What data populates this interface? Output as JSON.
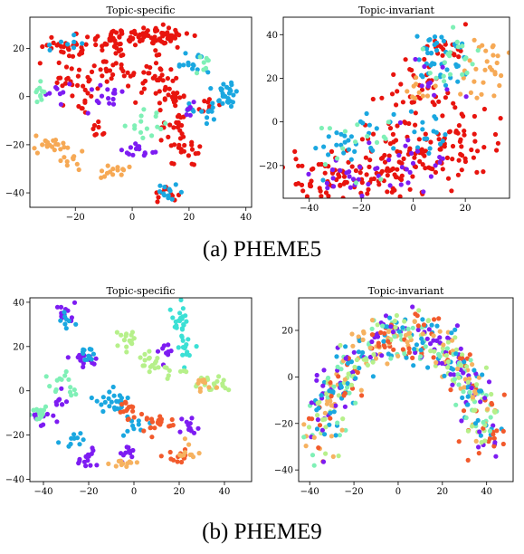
{
  "captions": [
    "(a) PHEME5",
    "(b) PHEME9"
  ],
  "colors": {
    "red": "#e8140e",
    "cyan": "#1aa7e0",
    "violet": "#7d1cf2",
    "mint": "#7ff0b6",
    "orange": "#f6a955",
    "teal": "#3be0d5",
    "lightgreen": "#b6f08a",
    "redorange": "#f25a2c",
    "lightorange": "#f6b260"
  },
  "chart_data": [
    {
      "type": "scatter",
      "title": "Topic-specific",
      "xlim": [
        -36,
        42
      ],
      "ylim": [
        -46,
        33
      ],
      "xticks": [
        -20,
        0,
        20,
        40
      ],
      "yticks": [
        -40,
        -20,
        0,
        20
      ],
      "clusters": [
        {
          "color": "red",
          "cx": 8,
          "cy": 25,
          "sx": 6,
          "sy": 2,
          "n": 60
        },
        {
          "color": "red",
          "cx": -6,
          "cy": 24,
          "sx": 5,
          "sy": 2.5,
          "n": 40
        },
        {
          "color": "red",
          "cx": -22,
          "cy": 20,
          "sx": 4,
          "sy": 3,
          "n": 30
        },
        {
          "color": "red",
          "cx": -20,
          "cy": 6,
          "sx": 4,
          "sy": 4,
          "n": 30
        },
        {
          "color": "red",
          "cx": -8,
          "cy": 10,
          "sx": 4,
          "sy": 3,
          "n": 25
        },
        {
          "color": "red",
          "cx": 7,
          "cy": 9,
          "sx": 3,
          "sy": 4,
          "n": 25
        },
        {
          "color": "red",
          "cx": 14,
          "cy": 0,
          "sx": 4,
          "sy": 3,
          "n": 25
        },
        {
          "color": "red",
          "cx": 14,
          "cy": -12,
          "sx": 3,
          "sy": 3,
          "n": 20
        },
        {
          "color": "red",
          "cx": 19,
          "cy": -24,
          "sx": 3,
          "sy": 3,
          "n": 20
        },
        {
          "color": "red",
          "cx": 12,
          "cy": -40,
          "sx": 2,
          "sy": 2,
          "n": 12
        },
        {
          "color": "red",
          "cx": 27,
          "cy": -4,
          "sx": 2,
          "sy": 2,
          "n": 10
        },
        {
          "color": "red",
          "cx": -12,
          "cy": -14,
          "sx": 2,
          "sy": 2,
          "n": 8
        },
        {
          "color": "cyan",
          "cx": 34,
          "cy": 2,
          "sx": 4,
          "sy": 3,
          "n": 25
        },
        {
          "color": "cyan",
          "cx": 21,
          "cy": 14,
          "sx": 3,
          "sy": 2,
          "n": 15
        },
        {
          "color": "cyan",
          "cx": 28,
          "cy": -6,
          "sx": 2,
          "sy": 2,
          "n": 10
        },
        {
          "color": "cyan",
          "cx": 13,
          "cy": -40,
          "sx": 2,
          "sy": 2,
          "n": 12
        },
        {
          "color": "cyan",
          "cx": -22,
          "cy": 22,
          "sx": 3,
          "sy": 2,
          "n": 8
        },
        {
          "color": "cyan",
          "cx": 20,
          "cy": -5,
          "sx": 2,
          "sy": 2,
          "n": 6
        },
        {
          "color": "violet",
          "cx": -10,
          "cy": 0,
          "sx": 3,
          "sy": 3,
          "n": 15
        },
        {
          "color": "violet",
          "cx": 3,
          "cy": -22,
          "sx": 3,
          "sy": 2,
          "n": 15
        },
        {
          "color": "violet",
          "cx": -26,
          "cy": 2,
          "sx": 2,
          "sy": 2,
          "n": 8
        },
        {
          "color": "violet",
          "cx": 20,
          "cy": -5,
          "sx": 2,
          "sy": 2,
          "n": 6
        },
        {
          "color": "mint",
          "cx": -32,
          "cy": 2,
          "sx": 2,
          "sy": 2,
          "n": 10
        },
        {
          "color": "mint",
          "cx": 4,
          "cy": -12,
          "sx": 3,
          "sy": 3,
          "n": 15
        },
        {
          "color": "mint",
          "cx": 26,
          "cy": 13,
          "sx": 2,
          "sy": 2,
          "n": 8
        },
        {
          "color": "orange",
          "cx": -28,
          "cy": -20,
          "sx": 3,
          "sy": 2,
          "n": 20
        },
        {
          "color": "orange",
          "cx": -22,
          "cy": -26,
          "sx": 2,
          "sy": 2,
          "n": 10
        },
        {
          "color": "orange",
          "cx": -8,
          "cy": -31,
          "sx": 3,
          "sy": 2,
          "n": 15
        }
      ]
    },
    {
      "type": "scatter",
      "title": "Topic-invariant",
      "xlim": [
        -50,
        37
      ],
      "ylim": [
        -35,
        48
      ],
      "xticks": [
        -40,
        -20,
        0,
        20
      ],
      "yticks": [
        -20,
        0,
        20,
        40
      ],
      "clusters": [
        {
          "color": "red",
          "cx": -30,
          "cy": -25,
          "sx": 9,
          "sy": 5,
          "n": 70
        },
        {
          "color": "red",
          "cx": -5,
          "cy": -18,
          "sx": 10,
          "sy": 9,
          "n": 90
        },
        {
          "color": "red",
          "cx": 18,
          "cy": -10,
          "sx": 8,
          "sy": 8,
          "n": 50
        },
        {
          "color": "red",
          "cx": 0,
          "cy": 15,
          "sx": 8,
          "sy": 8,
          "n": 40
        },
        {
          "color": "red",
          "cx": 12,
          "cy": 35,
          "sx": 4,
          "sy": 4,
          "n": 20
        },
        {
          "color": "cyan",
          "cx": 10,
          "cy": 30,
          "sx": 5,
          "sy": 8,
          "n": 40
        },
        {
          "color": "cyan",
          "cx": -25,
          "cy": -10,
          "sx": 8,
          "sy": 6,
          "n": 25
        },
        {
          "color": "cyan",
          "cx": 5,
          "cy": -5,
          "sx": 8,
          "sy": 6,
          "n": 20
        },
        {
          "color": "orange",
          "cx": 28,
          "cy": 25,
          "sx": 4,
          "sy": 8,
          "n": 30
        },
        {
          "color": "orange",
          "cx": 2,
          "cy": 15,
          "sx": 3,
          "sy": 3,
          "n": 10
        },
        {
          "color": "violet",
          "cx": -25,
          "cy": -28,
          "sx": 8,
          "sy": 4,
          "n": 20
        },
        {
          "color": "violet",
          "cx": 0,
          "cy": -20,
          "sx": 10,
          "sy": 8,
          "n": 25
        },
        {
          "color": "violet",
          "cx": 8,
          "cy": 20,
          "sx": 6,
          "sy": 6,
          "n": 10
        },
        {
          "color": "mint",
          "cx": 15,
          "cy": 30,
          "sx": 6,
          "sy": 8,
          "n": 20
        },
        {
          "color": "mint",
          "cx": -20,
          "cy": -10,
          "sx": 10,
          "sy": 8,
          "n": 15
        }
      ]
    },
    {
      "type": "scatter",
      "title": "Topic-specific",
      "xlim": [
        -46,
        52
      ],
      "ylim": [
        -41,
        42
      ],
      "xticks": [
        -40,
        -20,
        0,
        20,
        40
      ],
      "yticks": [
        -40,
        -20,
        0,
        20,
        40
      ],
      "clusters": [
        {
          "color": "violet",
          "cx": -31,
          "cy": 34,
          "sx": 2,
          "sy": 2.5,
          "n": 15
        },
        {
          "color": "violet",
          "cx": -21,
          "cy": 15,
          "sx": 3,
          "sy": 2,
          "n": 15
        },
        {
          "color": "violet",
          "cx": -40,
          "cy": -12,
          "sx": 3,
          "sy": 2,
          "n": 12
        },
        {
          "color": "violet",
          "cx": -20,
          "cy": -30,
          "sx": 3,
          "sy": 3,
          "n": 15
        },
        {
          "color": "violet",
          "cx": 13,
          "cy": 17,
          "sx": 2,
          "sy": 2,
          "n": 10
        },
        {
          "color": "violet",
          "cx": 25,
          "cy": -15,
          "sx": 3,
          "sy": 2,
          "n": 12
        },
        {
          "color": "violet",
          "cx": -2,
          "cy": -28,
          "sx": 3,
          "sy": 3,
          "n": 10
        },
        {
          "color": "violet",
          "cx": -32,
          "cy": -5,
          "sx": 2,
          "sy": 2,
          "n": 8
        },
        {
          "color": "cyan",
          "cx": -20,
          "cy": 16,
          "sx": 2,
          "sy": 2,
          "n": 12
        },
        {
          "color": "cyan",
          "cx": -10,
          "cy": -5,
          "sx": 4,
          "sy": 3,
          "n": 25
        },
        {
          "color": "cyan",
          "cx": -30,
          "cy": 32,
          "sx": 2,
          "sy": 2,
          "n": 8
        },
        {
          "color": "cyan",
          "cx": -27,
          "cy": -22,
          "sx": 3,
          "sy": 2,
          "n": 10
        },
        {
          "color": "cyan",
          "cx": 0,
          "cy": -16,
          "sx": 3,
          "sy": 3,
          "n": 10
        },
        {
          "color": "teal",
          "cx": 20,
          "cy": 33,
          "sx": 2,
          "sy": 3,
          "n": 20
        },
        {
          "color": "teal",
          "cx": 22,
          "cy": 20,
          "sx": 2,
          "sy": 4,
          "n": 15
        },
        {
          "color": "mint",
          "cx": -32,
          "cy": 2,
          "sx": 3,
          "sy": 3,
          "n": 15
        },
        {
          "color": "mint",
          "cx": -40,
          "cy": -10,
          "sx": 3,
          "sy": 2,
          "n": 12
        },
        {
          "color": "lightgreen",
          "cx": -2,
          "cy": 23,
          "sx": 3,
          "sy": 2,
          "n": 15
        },
        {
          "color": "lightgreen",
          "cx": 35,
          "cy": 3,
          "sx": 5,
          "sy": 2,
          "n": 20
        },
        {
          "color": "lightgreen",
          "cx": 15,
          "cy": 10,
          "sx": 4,
          "sy": 3,
          "n": 15
        },
        {
          "color": "lightgreen",
          "cx": 5,
          "cy": 15,
          "sx": 3,
          "sy": 3,
          "n": 12
        },
        {
          "color": "redorange",
          "cx": 12,
          "cy": -15,
          "sx": 4,
          "sy": 2,
          "n": 20
        },
        {
          "color": "redorange",
          "cx": -2,
          "cy": -10,
          "sx": 3,
          "sy": 3,
          "n": 15
        },
        {
          "color": "redorange",
          "cx": 20,
          "cy": -30,
          "sx": 3,
          "sy": 2,
          "n": 12
        },
        {
          "color": "lightorange",
          "cx": -5,
          "cy": -33,
          "sx": 3,
          "sy": 2,
          "n": 12
        },
        {
          "color": "lightorange",
          "cx": 23,
          "cy": -28,
          "sx": 3,
          "sy": 2,
          "n": 10
        },
        {
          "color": "lightorange",
          "cx": 32,
          "cy": 2,
          "sx": 3,
          "sy": 2,
          "n": 10
        }
      ]
    },
    {
      "type": "scatter",
      "title": "Topic-invariant",
      "xlim": [
        -45,
        52
      ],
      "ylim": [
        -45,
        34
      ],
      "xticks": [
        -40,
        -20,
        0,
        20,
        40
      ],
      "yticks": [
        -40,
        -20,
        0,
        20
      ],
      "arc": {
        "cx": 3,
        "cy": -38,
        "rx": 38,
        "ry": 62,
        "spread": 5,
        "n": 520,
        "colors": [
          "violet",
          "cyan",
          "lightorange",
          "mint",
          "redorange",
          "lightgreen"
        ]
      }
    }
  ]
}
